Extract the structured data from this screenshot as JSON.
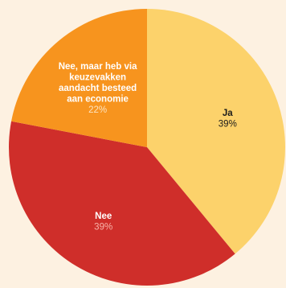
{
  "chart_data": {
    "type": "pie",
    "categories": [
      "Ja",
      "Nee",
      "Nee, maar heb via keuzevakken aandacht besteed aan economie"
    ],
    "values": [
      39,
      39,
      22
    ],
    "value_labels": [
      "39%",
      "39%",
      "22%"
    ],
    "label_lines": [
      [
        "Ja"
      ],
      [
        "Nee"
      ],
      [
        "Nee, maar heb via",
        "keuzevakken",
        "aandacht besteed",
        "aan economie"
      ]
    ],
    "colors": [
      "#fcd26b",
      "#cf2e2a",
      "#f7941e"
    ],
    "label_colors": {
      "name": [
        "#1a1a1a",
        "#ffffff",
        "#ffffff"
      ],
      "value": [
        "#1a1a1a",
        "#f7b2a8",
        "#fde3c0"
      ]
    },
    "start_angle_deg": 0,
    "direction": "clockwise",
    "legend": "none"
  }
}
